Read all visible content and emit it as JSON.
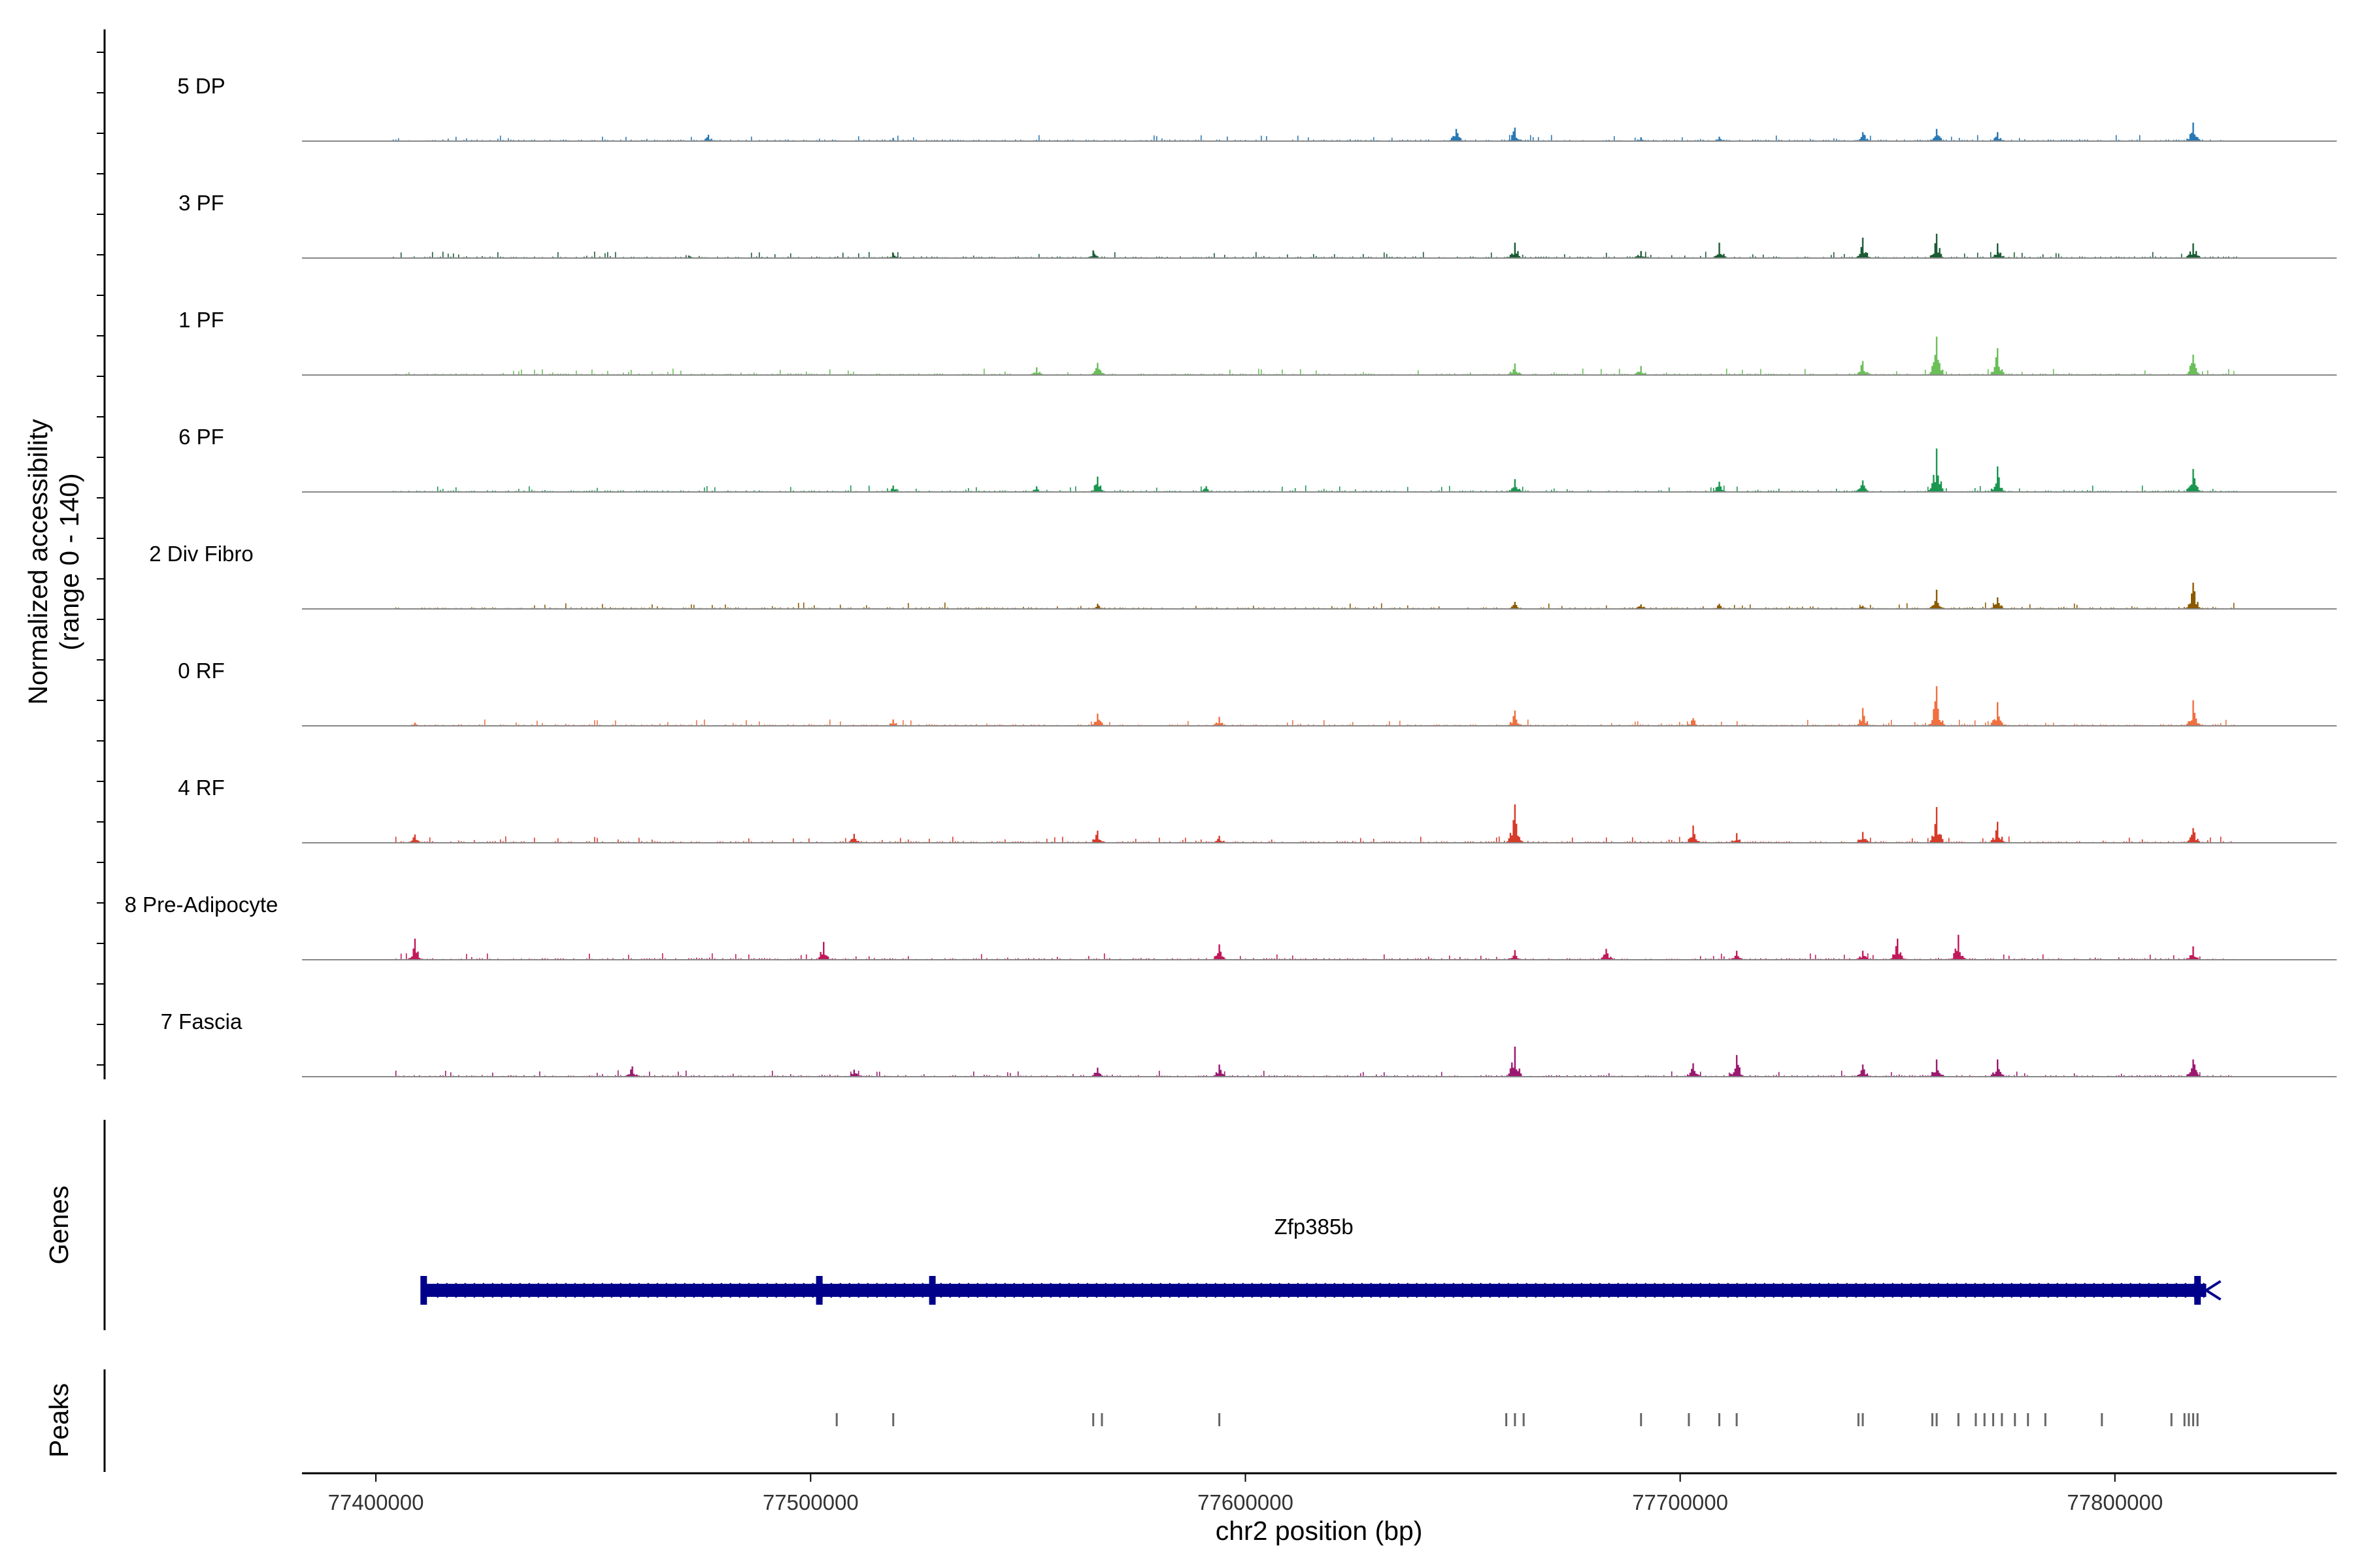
{
  "chart_data": {
    "type": "coverage",
    "y_axis_title": [
      "Normalized accessibility",
      "(range 0 - 140)"
    ],
    "y_range": [
      0,
      140
    ],
    "x_axis_title": "chr2 position (bp)",
    "x_range": [
      77383000,
      77851000
    ],
    "x_ticks": [
      {
        "value": 77400000,
        "label": "77400000"
      },
      {
        "value": 77500000,
        "label": "77500000"
      },
      {
        "value": 77600000,
        "label": "77600000"
      },
      {
        "value": 77700000,
        "label": "77700000"
      },
      {
        "value": 77800000,
        "label": "77800000"
      }
    ],
    "coverage_span": [
      77404000,
      77828000
    ],
    "peak_positions": [
      77406000,
      77476500,
      77519000,
      77648500,
      77662000,
      77691000,
      77709000,
      77742000,
      77759000,
      77773000,
      77818000
    ],
    "tracks": [
      {
        "label": "5 DP",
        "color": "#2878b5",
        "peaks": [
          [
            77476500,
            10
          ],
          [
            77519000,
            5
          ],
          [
            77648500,
            19
          ],
          [
            77662000,
            21
          ],
          [
            77691000,
            6
          ],
          [
            77709000,
            7
          ],
          [
            77742000,
            14
          ],
          [
            77759000,
            19
          ],
          [
            77773000,
            14
          ],
          [
            77818000,
            29
          ]
        ]
      },
      {
        "label": "3 PF",
        "color": "#1a5c34",
        "peaks": [
          [
            77472000,
            4
          ],
          [
            77519000,
            8
          ],
          [
            77565000,
            12
          ],
          [
            77662000,
            24
          ],
          [
            77691000,
            11
          ],
          [
            77709000,
            24
          ],
          [
            77742000,
            32
          ],
          [
            77759000,
            38
          ],
          [
            77773000,
            23
          ],
          [
            77818000,
            23
          ]
        ]
      },
      {
        "label": "1 PF",
        "color": "#6bbf59",
        "peaks": [
          [
            77552000,
            12
          ],
          [
            77566000,
            19
          ],
          [
            77662000,
            18
          ],
          [
            77691000,
            14
          ],
          [
            77742000,
            22
          ],
          [
            77759000,
            60
          ],
          [
            77773000,
            42
          ],
          [
            77818000,
            32
          ]
        ]
      },
      {
        "label": "6 PF",
        "color": "#1a9650",
        "peaks": [
          [
            77519000,
            10
          ],
          [
            77552000,
            8
          ],
          [
            77566000,
            24
          ],
          [
            77591000,
            9
          ],
          [
            77662000,
            20
          ],
          [
            77709000,
            16
          ],
          [
            77742000,
            18
          ],
          [
            77759000,
            68
          ],
          [
            77773000,
            40
          ],
          [
            77818000,
            36
          ]
        ]
      },
      {
        "label": "2 Div Fibro",
        "color": "#8b5a00",
        "peaks": [
          [
            77566000,
            8
          ],
          [
            77662000,
            11
          ],
          [
            77691000,
            7
          ],
          [
            77709000,
            8
          ],
          [
            77742000,
            5
          ],
          [
            77759000,
            30
          ],
          [
            77773000,
            18
          ],
          [
            77818000,
            41
          ]
        ]
      },
      {
        "label": "0 RF",
        "color": "#f07040",
        "peaks": [
          [
            77409000,
            5
          ],
          [
            77519000,
            10
          ],
          [
            77566000,
            19
          ],
          [
            77594000,
            14
          ],
          [
            77662000,
            24
          ],
          [
            77703000,
            12
          ],
          [
            77742000,
            28
          ],
          [
            77759000,
            62
          ],
          [
            77773000,
            37
          ],
          [
            77818000,
            40
          ]
        ]
      },
      {
        "label": "4 RF",
        "color": "#d73b2a",
        "peaks": [
          [
            77409000,
            13
          ],
          [
            77510000,
            14
          ],
          [
            77566000,
            19
          ],
          [
            77594000,
            11
          ],
          [
            77662000,
            60
          ],
          [
            77703000,
            27
          ],
          [
            77713000,
            15
          ],
          [
            77742000,
            17
          ],
          [
            77759000,
            56
          ],
          [
            77773000,
            33
          ],
          [
            77818000,
            23
          ]
        ]
      },
      {
        "label": "8 Pre-Adipocyte",
        "color": "#c2185b",
        "peaks": [
          [
            77409000,
            33
          ],
          [
            77503000,
            28
          ],
          [
            77594000,
            24
          ],
          [
            77662000,
            15
          ],
          [
            77683000,
            17
          ],
          [
            77713000,
            14
          ],
          [
            77742000,
            14
          ],
          [
            77750000,
            33
          ],
          [
            77764000,
            39
          ],
          [
            77818000,
            21
          ]
        ]
      },
      {
        "label": "7 Fascia",
        "color": "#9c1870",
        "peaks": [
          [
            77459000,
            16
          ],
          [
            77510000,
            11
          ],
          [
            77566000,
            14
          ],
          [
            77594000,
            19
          ],
          [
            77662000,
            47
          ],
          [
            77703000,
            21
          ],
          [
            77713000,
            34
          ],
          [
            77742000,
            19
          ],
          [
            77759000,
            27
          ],
          [
            77773000,
            27
          ],
          [
            77818000,
            27
          ]
        ]
      }
    ],
    "genes": {
      "panel_label": "Genes",
      "name": "Zfp385b",
      "start": 77411000,
      "end": 77821000,
      "strand": "-",
      "color": "#00008b",
      "exons": [
        77411000,
        77502000,
        77528000,
        77819000
      ]
    },
    "peaks_panel": {
      "label": "Peaks",
      "color": "#666666",
      "positions": [
        77506000,
        77519000,
        77565000,
        77567000,
        77594000,
        77660000,
        77662000,
        77664000,
        77691000,
        77702000,
        77709000,
        77713000,
        77741000,
        77742000,
        77758000,
        77759000,
        77764000,
        77768000,
        77770000,
        77772000,
        77774000,
        77777000,
        77780000,
        77784000,
        77797000,
        77813000,
        77816000,
        77817000,
        77818000,
        77819000
      ]
    }
  }
}
